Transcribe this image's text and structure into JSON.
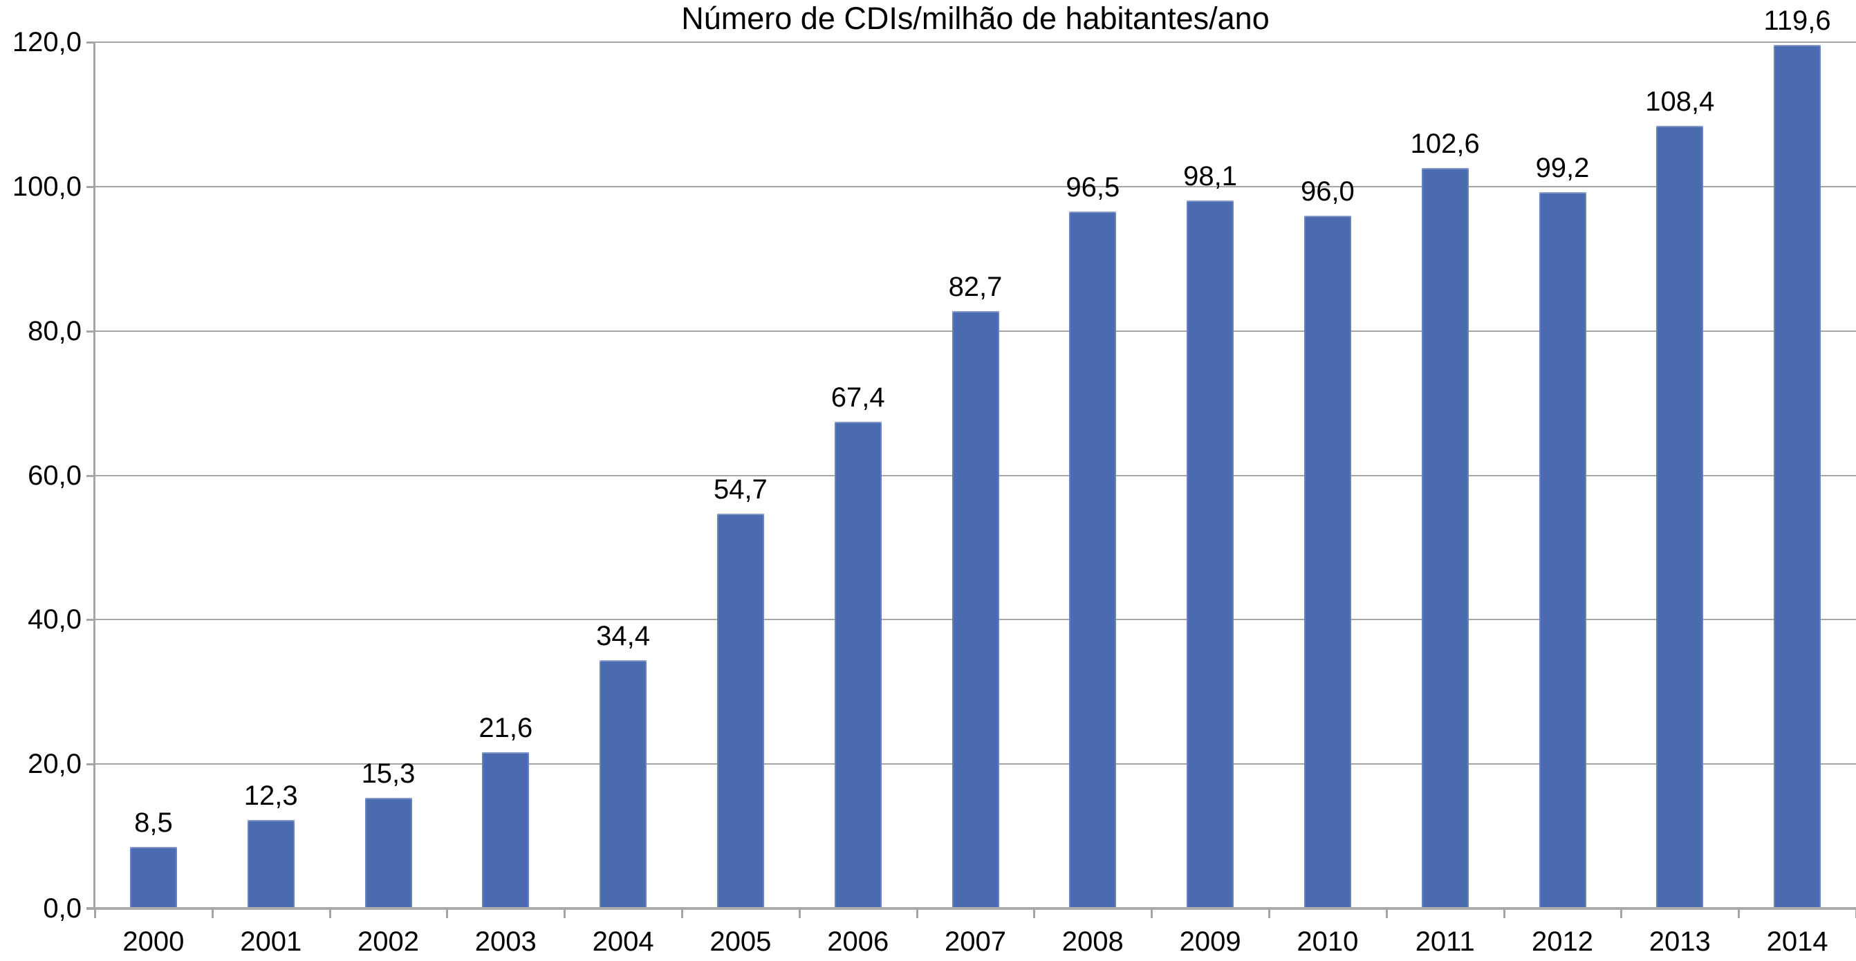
{
  "chart_data": {
    "type": "bar",
    "title": "Número de CDIs/milhão de habitantes/ano",
    "categories": [
      "2000",
      "2001",
      "2002",
      "2003",
      "2004",
      "2005",
      "2006",
      "2007",
      "2008",
      "2009",
      "2010",
      "2011",
      "2012",
      "2013",
      "2014"
    ],
    "values": [
      8.5,
      12.3,
      15.3,
      21.6,
      34.4,
      54.7,
      67.4,
      82.7,
      96.5,
      98.1,
      96.0,
      102.6,
      99.2,
      108.4,
      119.6
    ],
    "value_labels": [
      "8,5",
      "12,3",
      "15,3",
      "21,6",
      "34,4",
      "54,7",
      "67,4",
      "82,7",
      "96,5",
      "98,1",
      "96,0",
      "102,6",
      "99,2",
      "108,4",
      "119,6"
    ],
    "xlabel": "",
    "ylabel": "",
    "ylim": [
      0,
      120
    ],
    "y_tick_values": [
      0,
      20,
      40,
      60,
      80,
      100,
      120
    ],
    "y_tick_labels": [
      "0,0",
      "20,0",
      "40,0",
      "60,0",
      "80,0",
      "100,0",
      "120,0"
    ],
    "grid": true,
    "legend_position": "none",
    "decimal_separator": ",",
    "colors": {
      "bar_fill": "#4A6BB0",
      "gridline": "#a5a5a5",
      "axis": "#a5a5a5",
      "baseline": "#ababab",
      "text": "#000000",
      "background": "#ffffff"
    }
  }
}
